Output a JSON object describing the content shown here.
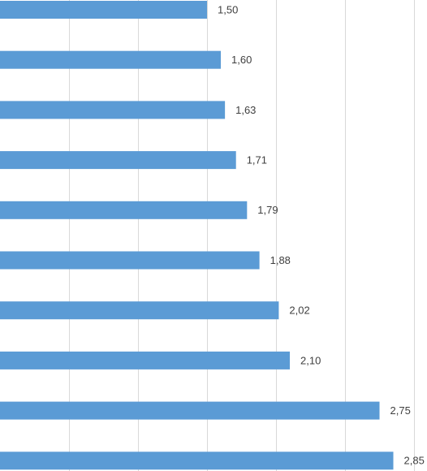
{
  "chart_data": {
    "type": "bar",
    "orientation": "horizontal",
    "values": [
      1.5,
      1.6,
      1.63,
      1.71,
      1.79,
      1.88,
      2.02,
      2.1,
      2.75,
      2.85
    ],
    "value_labels": [
      "1,50",
      "1,60",
      "1,63",
      "1,71",
      "1,79",
      "1,88",
      "2,02",
      "2,10",
      "2,75",
      "2,85"
    ],
    "color": "#5b9bd5",
    "xlim": [
      0,
      3.094
    ],
    "xticks": [
      0.5,
      1,
      1.5,
      2,
      2.5,
      3
    ],
    "grid": true
  }
}
